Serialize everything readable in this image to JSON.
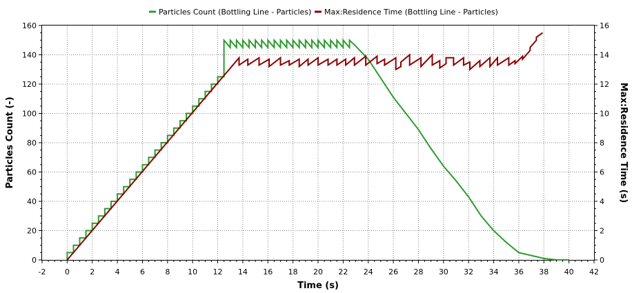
{
  "chart_data": {
    "type": "line",
    "grid": true,
    "legend_position": "top",
    "xlabel": "Time (s)",
    "ylabel_left": "Particles Count (-)",
    "ylabel_right": "Max:Residence Time (s)",
    "xlim": [
      -2,
      42
    ],
    "ylim_left": [
      0,
      160
    ],
    "ylim_right": [
      0,
      16
    ],
    "x_ticks": [
      -2,
      0,
      2,
      4,
      6,
      8,
      10,
      12,
      14,
      16,
      18,
      20,
      22,
      24,
      26,
      28,
      30,
      32,
      34,
      36,
      38,
      40,
      42
    ],
    "y_left_ticks": [
      0,
      20,
      40,
      60,
      80,
      100,
      120,
      140,
      160
    ],
    "y_right_ticks": [
      0,
      2,
      4,
      6,
      8,
      10,
      12,
      14,
      16
    ],
    "series": [
      {
        "name": "Particles Count (Bottling Line - Particles)",
        "axis": "left",
        "color": "#2e9b2e",
        "ramp": {
          "from_x": 0,
          "to_x": 12.5,
          "step_x": 0.5,
          "step_y": 5
        },
        "plateau": {
          "from_x": 12.5,
          "to_x": 22.5,
          "high": 150,
          "low": 145,
          "period": 0.5
        },
        "points": [
          [
            22.5,
            150
          ],
          [
            23,
            146
          ],
          [
            24,
            137
          ],
          [
            25,
            124
          ],
          [
            26,
            111
          ],
          [
            27,
            100
          ],
          [
            28,
            89
          ],
          [
            29,
            76
          ],
          [
            30,
            64
          ],
          [
            31,
            54
          ],
          [
            32,
            43
          ],
          [
            33,
            30
          ],
          [
            34,
            20
          ],
          [
            35,
            12
          ],
          [
            36,
            5
          ],
          [
            37,
            3
          ],
          [
            38,
            1
          ],
          [
            39,
            0
          ],
          [
            40,
            0
          ]
        ]
      },
      {
        "name": "Max:Residence Time (Bottling Line - Particles)",
        "axis": "right",
        "color": "#8b0000",
        "points": [
          [
            0,
            0
          ],
          [
            13.7,
            13.8
          ],
          [
            13.7,
            13.3
          ],
          [
            14.4,
            13.7
          ],
          [
            14.4,
            13.3
          ],
          [
            15.3,
            13.8
          ],
          [
            15.3,
            13.3
          ],
          [
            16.1,
            13.7
          ],
          [
            16.1,
            13.2
          ],
          [
            17,
            13.8
          ],
          [
            17,
            13.3
          ],
          [
            17.7,
            13.6
          ],
          [
            17.7,
            13.3
          ],
          [
            18.5,
            13.7
          ],
          [
            18.5,
            13.2
          ],
          [
            19.2,
            13.7
          ],
          [
            19.2,
            13.3
          ],
          [
            20,
            13.8
          ],
          [
            20,
            13.3
          ],
          [
            20.8,
            13.7
          ],
          [
            20.8,
            13.3
          ],
          [
            21.5,
            13.7
          ],
          [
            21.5,
            13.3
          ],
          [
            22.2,
            13.7
          ],
          [
            22.2,
            13.3
          ],
          [
            22.9,
            13.8
          ],
          [
            22.9,
            13.3
          ],
          [
            23.8,
            13.9
          ],
          [
            23.8,
            13.3
          ],
          [
            24.7,
            13.9
          ],
          [
            24.7,
            13.4
          ],
          [
            25.3,
            13.7
          ],
          [
            25.3,
            13.3
          ],
          [
            26.2,
            13.8
          ],
          [
            26.2,
            13.0
          ],
          [
            26.6,
            13.2
          ],
          [
            26.6,
            13.5
          ],
          [
            27.3,
            14.0
          ],
          [
            27.3,
            13.3
          ],
          [
            28.2,
            13.8
          ],
          [
            28.2,
            13.2
          ],
          [
            29.1,
            14.0
          ],
          [
            29.1,
            13.3
          ],
          [
            29.7,
            13.6
          ],
          [
            29.7,
            13.1
          ],
          [
            30.2,
            13.4
          ],
          [
            30.2,
            13.8
          ],
          [
            30.8,
            13.8
          ],
          [
            30.8,
            13.3
          ],
          [
            31.6,
            13.8
          ],
          [
            31.6,
            13.3
          ],
          [
            32.1,
            13.5
          ],
          [
            32.1,
            13.0
          ],
          [
            32.9,
            13.6
          ],
          [
            32.9,
            13.2
          ],
          [
            33.7,
            13.8
          ],
          [
            33.7,
            13.2
          ],
          [
            34.3,
            13.8
          ],
          [
            34.3,
            13.3
          ],
          [
            35.2,
            13.8
          ],
          [
            35.2,
            13.3
          ],
          [
            35.7,
            13.6
          ],
          [
            35.7,
            13.4
          ],
          [
            36.3,
            13.9
          ],
          [
            36.3,
            13.7
          ],
          [
            36.9,
            14.3
          ],
          [
            36.9,
            14.5
          ],
          [
            37.4,
            15.0
          ],
          [
            37.4,
            15.2
          ],
          [
            37.9,
            15.5
          ]
        ]
      }
    ]
  }
}
